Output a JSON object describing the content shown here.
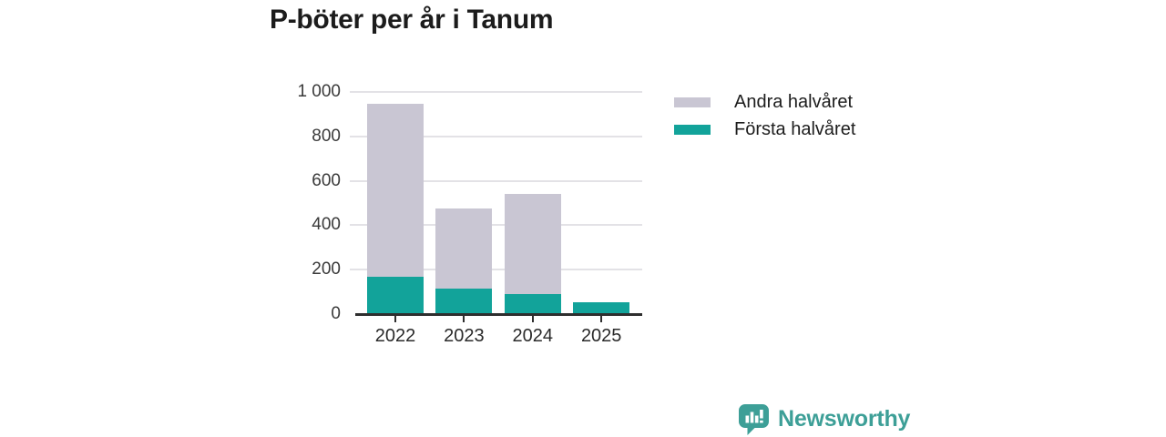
{
  "chart": {
    "title": "P-böter per år i Tanum"
  },
  "chart_data": {
    "type": "bar",
    "stacked": true,
    "title": "P-böter per år i Tanum",
    "categories": [
      "2022",
      "2023",
      "2024",
      "2025"
    ],
    "series": [
      {
        "name": "Första halvåret",
        "color_key": "teal",
        "values": [
          170,
          115,
          90,
          55
        ]
      },
      {
        "name": "Andra halvåret",
        "color_key": "gray",
        "values": [
          775,
          360,
          450,
          0
        ]
      }
    ],
    "totals": [
      945,
      475,
      540,
      55
    ],
    "xlabel": "",
    "ylabel": "",
    "ylim": [
      0,
      1000
    ],
    "yticks": [
      0,
      200,
      400,
      600,
      800,
      1000
    ],
    "ytick_labels": [
      "0",
      "200",
      "400",
      "600",
      "800",
      "1 000"
    ],
    "grid": true,
    "legend_position": "right",
    "legend_order": [
      "Andra halvåret",
      "Första halvåret"
    ]
  },
  "legend": {
    "items": [
      {
        "label": "Andra halvåret",
        "color_key": "gray"
      },
      {
        "label": "Första halvåret",
        "color_key": "teal"
      }
    ]
  },
  "logo": {
    "text": "Newsworthy",
    "icon": "newsworthy-speech-bubble-bar-chart-icon"
  },
  "colors": {
    "teal": "#12a39a",
    "gray": "#c9c6d3",
    "grid": "#e3e2e6",
    "axis": "#2e2e2e",
    "text": "#3a3a3a",
    "title": "#1c1c1c",
    "brand": "#3d9f97"
  }
}
